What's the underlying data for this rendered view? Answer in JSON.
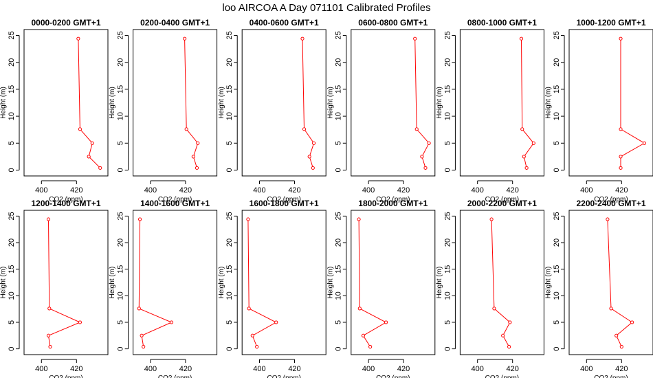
{
  "figure": {
    "title": "loo AIRCOA A  Day 071101  Calibrated Profiles"
  },
  "colors": {
    "line": "#ff0000",
    "frame": "#000000",
    "background": "#ffffff"
  },
  "chart_data": [
    {
      "type": "line",
      "title": "0000-0200 GMT+1",
      "xlabel": "CO2 (ppm)",
      "ylabel": "Height (m)",
      "x_ticks": [
        400,
        420
      ],
      "y_ticks": [
        0,
        5,
        10,
        15,
        20,
        25
      ],
      "xlim": [
        392,
        436
      ],
      "ylim": [
        0,
        25
      ],
      "series": [
        {
          "x": [
            421,
            422,
            429,
            427,
            433.5
          ],
          "y": [
            24.4,
            7.6,
            5.0,
            2.5,
            0.4
          ]
        }
      ]
    },
    {
      "type": "line",
      "title": "0200-0400 GMT+1",
      "xlabel": "CO2 (ppm)",
      "ylabel": "Height (m)",
      "x_ticks": [
        400,
        420
      ],
      "y_ticks": [
        0,
        5,
        10,
        15,
        20,
        25
      ],
      "xlim": [
        392,
        436
      ],
      "ylim": [
        0,
        25
      ],
      "series": [
        {
          "x": [
            419.5,
            420.5,
            427,
            424.5,
            426.5
          ],
          "y": [
            24.4,
            7.6,
            5.0,
            2.5,
            0.4
          ]
        }
      ]
    },
    {
      "type": "line",
      "title": "0400-0600 GMT+1",
      "xlabel": "CO2 (ppm)",
      "ylabel": "Height (m)",
      "x_ticks": [
        400,
        420
      ],
      "y_ticks": [
        0,
        5,
        10,
        15,
        20,
        25
      ],
      "xlim": [
        392,
        436
      ],
      "ylim": [
        0,
        25
      ],
      "series": [
        {
          "x": [
            424.5,
            425.5,
            431,
            428.5,
            430.5
          ],
          "y": [
            24.4,
            7.6,
            5.0,
            2.5,
            0.4
          ]
        }
      ]
    },
    {
      "type": "line",
      "title": "0600-0800 GMT+1",
      "xlabel": "CO2 (ppm)",
      "ylabel": "Height (m)",
      "x_ticks": [
        400,
        420
      ],
      "y_ticks": [
        0,
        5,
        10,
        15,
        20,
        25
      ],
      "xlim": [
        392,
        436
      ],
      "ylim": [
        0,
        25
      ],
      "series": [
        {
          "x": [
            426.5,
            427.5,
            434.5,
            430.5,
            432.5
          ],
          "y": [
            24.4,
            7.6,
            5.0,
            2.5,
            0.4
          ]
        }
      ]
    },
    {
      "type": "line",
      "title": "0800-1000 GMT+1",
      "xlabel": "CO2 (ppm)",
      "ylabel": "Height (m)",
      "x_ticks": [
        400,
        420
      ],
      "y_ticks": [
        0,
        5,
        10,
        15,
        20,
        25
      ],
      "xlim": [
        392,
        436
      ],
      "ylim": [
        0,
        25
      ],
      "series": [
        {
          "x": [
            425,
            425.5,
            432,
            426.5,
            428
          ],
          "y": [
            24.4,
            7.6,
            5.0,
            2.5,
            0.4
          ]
        }
      ]
    },
    {
      "type": "line",
      "title": "1000-1200 GMT+1",
      "xlabel": "CO2 (ppm)",
      "ylabel": "Height (m)",
      "x_ticks": [
        400,
        420
      ],
      "y_ticks": [
        0,
        5,
        10,
        15,
        20,
        25
      ],
      "xlim": [
        392,
        436
      ],
      "ylim": [
        0,
        25
      ],
      "series": [
        {
          "x": [
            419.5,
            419.5,
            433,
            419.5,
            419.5
          ],
          "y": [
            24.4,
            7.6,
            5.0,
            2.5,
            0.4
          ]
        }
      ]
    },
    {
      "type": "line",
      "title": "1200-1400 GMT+1",
      "xlabel": "CO2 (ppm)",
      "ylabel": "Height (m)",
      "x_ticks": [
        400,
        420
      ],
      "y_ticks": [
        0,
        5,
        10,
        15,
        20,
        25
      ],
      "xlim": [
        392,
        436
      ],
      "ylim": [
        0,
        25
      ],
      "series": [
        {
          "x": [
            404,
            404.5,
            422,
            404,
            405
          ],
          "y": [
            24.4,
            7.6,
            5.0,
            2.5,
            0.4
          ]
        }
      ]
    },
    {
      "type": "line",
      "title": "1400-1600 GMT+1",
      "xlabel": "CO2 (ppm)",
      "ylabel": "Height (m)",
      "x_ticks": [
        400,
        420
      ],
      "y_ticks": [
        0,
        5,
        10,
        15,
        20,
        25
      ],
      "xlim": [
        392,
        436
      ],
      "ylim": [
        0,
        25
      ],
      "series": [
        {
          "x": [
            394,
            393.5,
            412,
            395,
            396
          ],
          "y": [
            24.4,
            7.6,
            5.0,
            2.5,
            0.4
          ]
        }
      ]
    },
    {
      "type": "line",
      "title": "1600-1800 GMT+1",
      "xlabel": "CO2 (ppm)",
      "ylabel": "Height (m)",
      "x_ticks": [
        400,
        420
      ],
      "y_ticks": [
        0,
        5,
        10,
        15,
        20,
        25
      ],
      "xlim": [
        392,
        436
      ],
      "ylim": [
        0,
        25
      ],
      "series": [
        {
          "x": [
            393.5,
            394,
            409.5,
            396,
            398.5
          ],
          "y": [
            24.4,
            7.6,
            5.0,
            2.5,
            0.4
          ]
        }
      ]
    },
    {
      "type": "line",
      "title": "1800-2000 GMT+1",
      "xlabel": "CO2 (ppm)",
      "ylabel": "Height (m)",
      "x_ticks": [
        400,
        420
      ],
      "y_ticks": [
        0,
        5,
        10,
        15,
        20,
        25
      ],
      "xlim": [
        392,
        436
      ],
      "ylim": [
        0,
        25
      ],
      "series": [
        {
          "x": [
            394.5,
            395,
            410,
            397,
            401
          ],
          "y": [
            24.4,
            7.6,
            5.0,
            2.5,
            0.4
          ]
        }
      ]
    },
    {
      "type": "line",
      "title": "2000-2200 GMT+1",
      "xlabel": "CO2 (ppm)",
      "ylabel": "Height (m)",
      "x_ticks": [
        400,
        420
      ],
      "y_ticks": [
        0,
        5,
        10,
        15,
        20,
        25
      ],
      "xlim": [
        392,
        436
      ],
      "ylim": [
        0,
        25
      ],
      "series": [
        {
          "x": [
            408,
            409.5,
            418.5,
            414.5,
            418
          ],
          "y": [
            24.4,
            7.6,
            5.0,
            2.5,
            0.4
          ]
        }
      ]
    },
    {
      "type": "line",
      "title": "2200-2400 GMT+1",
      "xlabel": "CO2 (ppm)",
      "ylabel": "Height (m)",
      "x_ticks": [
        400,
        420
      ],
      "y_ticks": [
        0,
        5,
        10,
        15,
        20,
        25
      ],
      "xlim": [
        392,
        436
      ],
      "ylim": [
        0,
        25
      ],
      "series": [
        {
          "x": [
            412,
            414,
            426,
            417,
            420
          ],
          "y": [
            24.4,
            7.6,
            5.0,
            2.5,
            0.4
          ]
        }
      ]
    }
  ]
}
